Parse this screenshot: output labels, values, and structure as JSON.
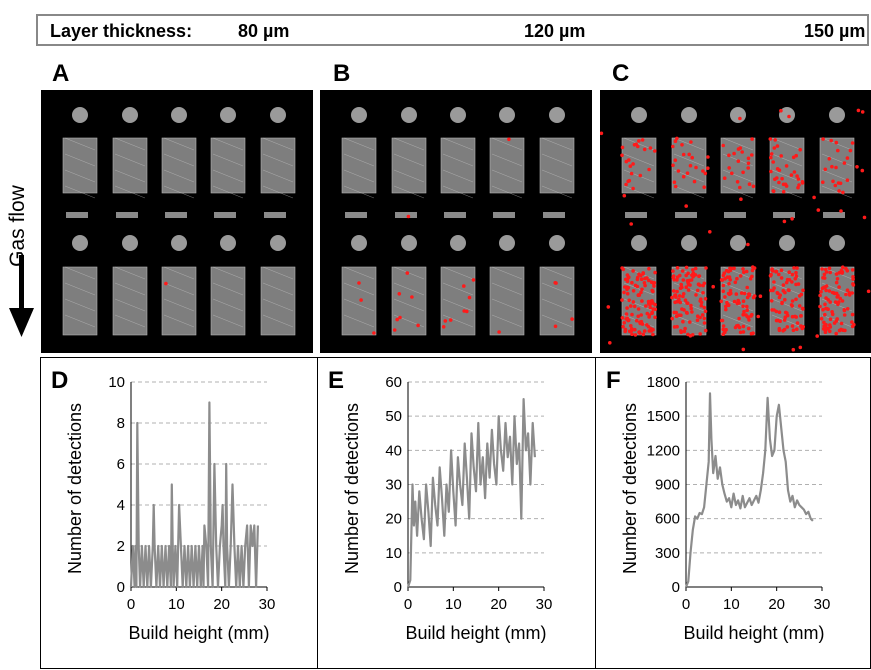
{
  "header": {
    "prefix": "Layer thickness:",
    "thickness_a": "80 µm",
    "thickness_b": "120 µm",
    "thickness_c": "150 µm"
  },
  "panels": {
    "A": "A",
    "B": "B",
    "C": "C",
    "D": "D",
    "E": "E",
    "F": "F"
  },
  "gas_flow_label": "Gas flow",
  "colors": {
    "line": "#8c8c8c",
    "defect": "#ff1a1a",
    "grid": "#b0b0b0",
    "background": "#000000"
  },
  "defects_per_image": {
    "A": 1,
    "B": 25,
    "C": 600
  },
  "chart_data": [
    {
      "type": "line",
      "panel": "D",
      "xlabel": "Build height (mm)",
      "ylabel": "Number of detections",
      "xlim": [
        0,
        30
      ],
      "ylim": [
        0,
        10
      ],
      "xticks": [
        0,
        10,
        20,
        30
      ],
      "yticks": [
        0,
        2,
        4,
        6,
        8,
        10
      ],
      "grid": "horizontal dashed",
      "series": [
        {
          "x": [
            0,
            0.4,
            0.8,
            1.0,
            1.2,
            1.4,
            1.7,
            2.0,
            2.4,
            2.8,
            3.2,
            3.6,
            4.0,
            4.4,
            4.8,
            5.0,
            5.2,
            5.6,
            6.0,
            6.4,
            6.8,
            7.2,
            7.6,
            8.0,
            8.4,
            8.8,
            9.0,
            9.2,
            9.4,
            9.8,
            10.2,
            10.6,
            11.0,
            11.4,
            11.8,
            12.2,
            12.6,
            13.0,
            13.4,
            13.8,
            14.2,
            14.6,
            15.0,
            15.4,
            15.8,
            16.0,
            16.2,
            16.6,
            17.0,
            17.3,
            17.6,
            18.0,
            18.4,
            18.8,
            19.2,
            19.6,
            20.0,
            20.2,
            20.4,
            20.8,
            21.0,
            21.2,
            21.6,
            22.0,
            22.4,
            22.8,
            23.2,
            23.6,
            24.0,
            24.4,
            24.8,
            25.2,
            25.6,
            26.0,
            26.4,
            26.8,
            27.2,
            27.6,
            28.0
          ],
          "y": [
            0,
            2,
            0,
            2,
            0,
            8,
            2,
            0,
            2,
            0,
            2,
            0,
            2,
            0,
            2,
            4,
            2,
            0,
            2,
            0,
            2,
            0,
            2,
            0,
            2,
            0,
            5,
            2,
            0,
            2,
            0,
            4,
            2,
            0,
            2,
            0,
            2,
            0,
            2,
            0,
            2,
            0,
            2,
            0,
            2,
            0,
            3,
            2,
            0,
            9,
            2,
            0,
            6,
            2,
            0,
            2,
            3,
            4,
            2,
            0,
            6,
            2,
            0,
            2,
            5,
            2,
            0,
            2,
            0,
            2,
            0,
            2,
            3,
            0,
            3,
            2,
            3,
            0,
            3
          ]
        }
      ]
    },
    {
      "type": "line",
      "panel": "E",
      "xlabel": "Build height (mm)",
      "ylabel": "Number of detections",
      "xlim": [
        0,
        30
      ],
      "ylim": [
        0,
        60
      ],
      "xticks": [
        0,
        10,
        20,
        30
      ],
      "yticks": [
        0,
        10,
        20,
        30,
        40,
        50,
        60
      ],
      "grid": "horizontal dashed",
      "series": [
        {
          "x": [
            0,
            0.5,
            1.0,
            1.3,
            1.6,
            2.0,
            2.5,
            3.0,
            3.5,
            4.0,
            4.5,
            5.0,
            5.5,
            6.0,
            6.5,
            7.0,
            7.5,
            8.0,
            8.5,
            9.0,
            9.5,
            10.0,
            10.5,
            11.0,
            11.5,
            12.0,
            12.5,
            13.0,
            13.5,
            14.0,
            14.5,
            15.0,
            15.5,
            16.0,
            16.5,
            17.0,
            17.5,
            18.0,
            18.5,
            19.0,
            19.5,
            20.0,
            20.5,
            21.0,
            21.5,
            22.0,
            22.5,
            23.0,
            23.5,
            24.0,
            24.5,
            25.0,
            25.5,
            26.0,
            26.5,
            27.0,
            27.5,
            28.0
          ],
          "y": [
            0,
            2,
            30,
            18,
            25,
            15,
            28,
            20,
            14,
            30,
            22,
            12,
            32,
            24,
            18,
            35,
            26,
            15,
            30,
            22,
            40,
            28,
            18,
            38,
            30,
            24,
            42,
            32,
            20,
            45,
            35,
            28,
            48,
            30,
            38,
            26,
            42,
            32,
            46,
            36,
            30,
            50,
            40,
            34,
            48,
            38,
            44,
            30,
            50,
            36,
            42,
            20,
            55,
            40,
            45,
            30,
            48,
            38
          ]
        }
      ]
    },
    {
      "type": "line",
      "panel": "F",
      "xlabel": "Build height (mm)",
      "ylabel": "Number of detections",
      "xlim": [
        0,
        30
      ],
      "ylim": [
        0,
        1800
      ],
      "xticks": [
        0,
        10,
        20,
        30
      ],
      "yticks": [
        0,
        300,
        600,
        900,
        1200,
        1500,
        1800
      ],
      "grid": "horizontal dashed",
      "series": [
        {
          "x": [
            0,
            0.5,
            1.0,
            1.5,
            2.0,
            2.5,
            3.0,
            3.5,
            4.0,
            4.5,
            5.0,
            5.3,
            5.6,
            6.0,
            6.5,
            7.0,
            7.5,
            8.0,
            8.5,
            9.0,
            9.5,
            10.0,
            10.5,
            11.0,
            11.5,
            12.0,
            12.5,
            13.0,
            13.5,
            14.0,
            14.5,
            15.0,
            15.5,
            16.0,
            16.5,
            17.0,
            17.5,
            18.0,
            18.5,
            19.0,
            19.5,
            20.0,
            20.5,
            21.0,
            21.5,
            22.0,
            22.5,
            23.0,
            23.5,
            24.0,
            24.5,
            25.0,
            25.5,
            26.0,
            26.5,
            27.0,
            27.5,
            28.0
          ],
          "y": [
            0,
            50,
            300,
            500,
            620,
            600,
            650,
            640,
            700,
            900,
            1100,
            1700,
            1300,
            1000,
            1150,
            950,
            1050,
            900,
            820,
            750,
            780,
            700,
            820,
            720,
            760,
            690,
            800,
            700,
            740,
            780,
            720,
            760,
            800,
            740,
            850,
            1000,
            1200,
            1660,
            1300,
            1150,
            1200,
            1500,
            1600,
            1400,
            1200,
            1100,
            850,
            750,
            800,
            700,
            760,
            720,
            700,
            680,
            640,
            660,
            600,
            580
          ]
        }
      ]
    }
  ]
}
